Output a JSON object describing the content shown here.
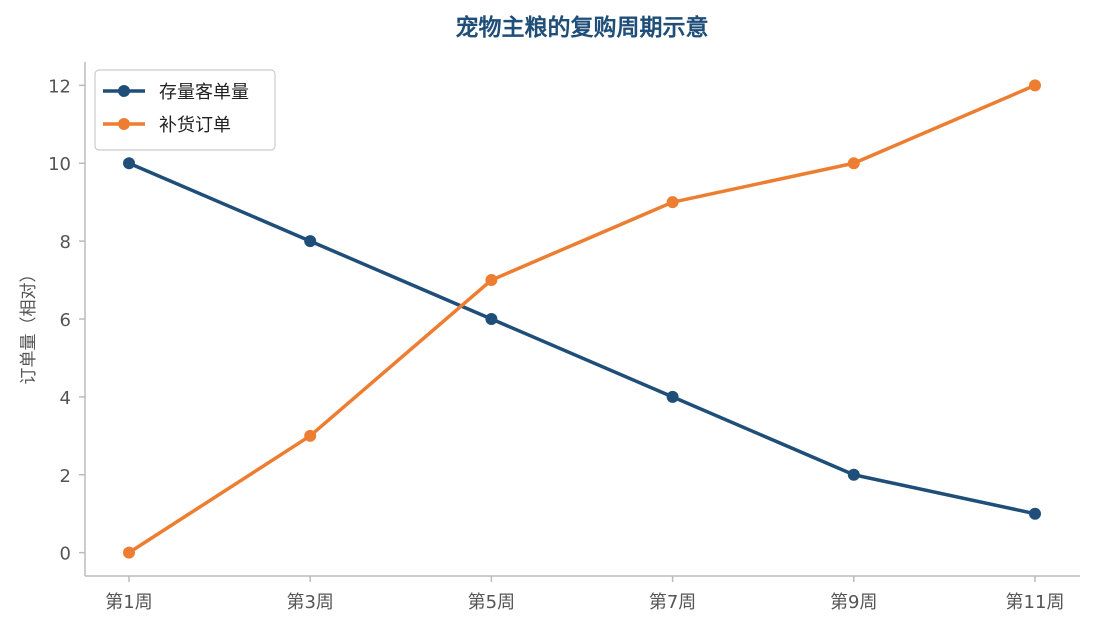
{
  "chart_data": {
    "type": "line",
    "title": "宠物主粮的复购周期示意",
    "xlabel": "",
    "ylabel": "订单量（相对）",
    "categories": [
      "第1周",
      "第3周",
      "第5周",
      "第7周",
      "第9周",
      "第11周"
    ],
    "ylim": [
      -0.6,
      12.6
    ],
    "yticks": [
      0,
      2,
      4,
      6,
      8,
      10,
      12
    ],
    "grid": false,
    "legend_position": "top-left",
    "series": [
      {
        "name": "存量客单量",
        "color": "#1f4e79",
        "values": [
          10,
          8,
          6,
          4,
          2,
          1
        ]
      },
      {
        "name": "补货订单",
        "color": "#ed7d31",
        "values": [
          0,
          3,
          7,
          9,
          10,
          12
        ]
      }
    ]
  },
  "colors": {
    "title": "#1f4e79",
    "axis": "#bbbbbb",
    "tick_text": "#555555"
  }
}
